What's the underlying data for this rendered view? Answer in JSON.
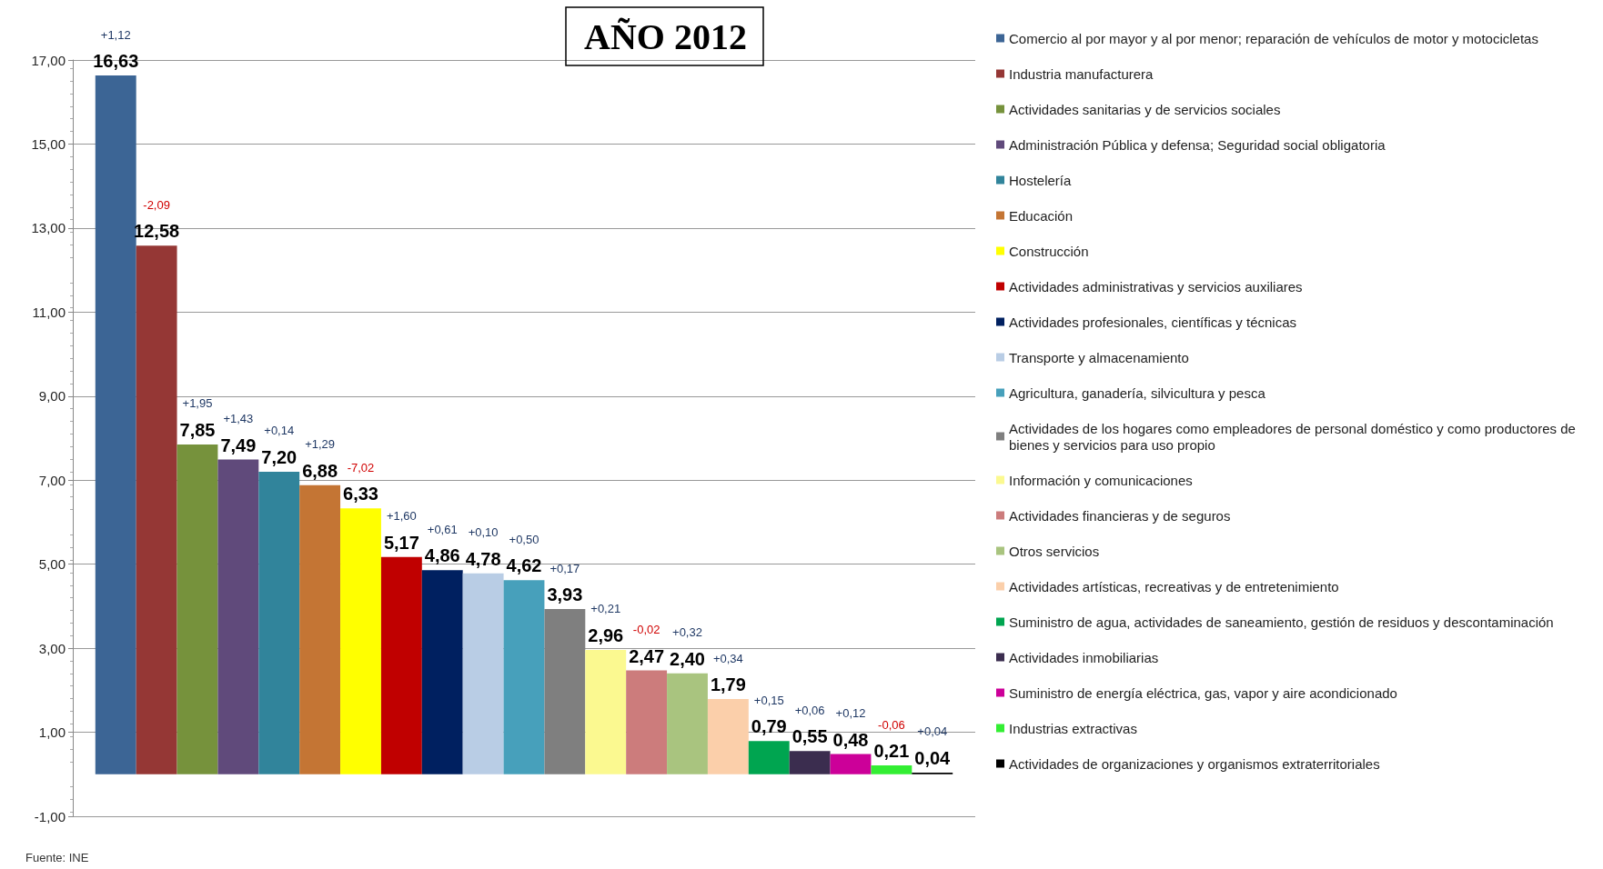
{
  "chart_data": {
    "type": "bar",
    "title": "AÑO 2012",
    "categories": [
      null
    ],
    "series": [
      {
        "name": "Comercio al por mayor y al por menor; reparación de vehículos de motor y motocicletas",
        "color": "#3c6595",
        "values": [
          16.63
        ],
        "value_labels": [
          "16,63"
        ]
      },
      {
        "name": "Industria manufacturera",
        "color": "#953735",
        "values": [
          12.58
        ],
        "value_labels": [
          "12,58"
        ]
      },
      {
        "name": "Actividades sanitarias y de servicios sociales",
        "color": "#76923c",
        "values": [
          7.85
        ],
        "value_labels": [
          "7,85"
        ]
      },
      {
        "name": "Administración Pública y defensa; Seguridad social obligatoria",
        "color": "#604a7b",
        "values": [
          7.49
        ],
        "value_labels": [
          "7,49"
        ]
      },
      {
        "name": "Hostelería",
        "color": "#31849b",
        "values": [
          7.2
        ],
        "value_labels": [
          "7,20"
        ]
      },
      {
        "name": "Educación",
        "color": "#c47534",
        "values": [
          6.88
        ],
        "value_labels": [
          "6,88"
        ]
      },
      {
        "name": "Construcción",
        "color": "#ffff00",
        "values": [
          6.33
        ],
        "value_labels": [
          "6,33"
        ]
      },
      {
        "name": "Actividades administrativas y servicios auxiliares",
        "color": "#c00000",
        "values": [
          5.17
        ],
        "value_labels": [
          "5,17"
        ]
      },
      {
        "name": "Actividades profesionales, científicas y técnicas",
        "color": "#002060",
        "values": [
          4.86
        ],
        "value_labels": [
          "4,86"
        ]
      },
      {
        "name": "Transporte y almacenamiento",
        "color": "#b9cde5",
        "values": [
          4.78
        ],
        "value_labels": [
          "4,78"
        ]
      },
      {
        "name": "Agricultura, ganadería, silvicultura y pesca",
        "color": "#47a0bb",
        "values": [
          4.62
        ],
        "value_labels": [
          "4,62"
        ]
      },
      {
        "name": "Actividades de los hogares como empleadores de personal doméstico y como productores de bienes y servicios para uso propio",
        "color": "#7f7f7f",
        "values": [
          3.93
        ],
        "value_labels": [
          "3,93"
        ]
      },
      {
        "name": "Información y comunicaciones",
        "color": "#fbf990",
        "values": [
          2.96
        ],
        "value_labels": [
          "2,96"
        ]
      },
      {
        "name": "Actividades financieras y de seguros",
        "color": "#cc7c7c",
        "values": [
          2.47
        ],
        "value_labels": [
          "2,47"
        ]
      },
      {
        "name": "Otros servicios",
        "color": "#a9c47f",
        "values": [
          2.4
        ],
        "value_labels": [
          "2,40"
        ]
      },
      {
        "name": "Actividades artísticas, recreativas y de entretenimiento",
        "color": "#fbcfaa",
        "values": [
          1.79
        ],
        "value_labels": [
          "1,79"
        ]
      },
      {
        "name": "Suministro de agua, actividades de saneamiento, gestión de residuos y descontaminación",
        "color": "#00a550",
        "values": [
          0.79
        ],
        "value_labels": [
          "0,79"
        ]
      },
      {
        "name": "Actividades inmobiliarias",
        "color": "#3b2d4f",
        "values": [
          0.55
        ],
        "value_labels": [
          "0,55"
        ]
      },
      {
        "name": "Suministro de energía eléctrica, gas, vapor y aire acondicionado",
        "color": "#cc0099",
        "values": [
          0.48
        ],
        "value_labels": [
          "0,48"
        ]
      },
      {
        "name": "Industrias extractivas",
        "color": "#33ee33",
        "values": [
          0.21
        ],
        "value_labels": [
          "0,21"
        ]
      },
      {
        "name": "Actividades de organizaciones y organismos extraterritoriales",
        "color": "#000000",
        "values": [
          0.04
        ],
        "value_labels": [
          "0,04"
        ]
      }
    ],
    "annotations": [
      "+1,12",
      "-2,09",
      "+1,95",
      "+1,43",
      "+0,14",
      "+1,29",
      "-7,02",
      "+1,60",
      "+0,61",
      "+0,10",
      "+0,50",
      "+0,17",
      "+0,21",
      "-0,02",
      "+0,32",
      "+0,34",
      "+0,15",
      "+0,06",
      "+0,12",
      "-0,06",
      "+0,04",
      "Fuente: INE"
    ],
    "ylim": [
      -1,
      17
    ],
    "yticks": [
      {
        "value": -1,
        "label": "-1,00"
      },
      {
        "value": 1,
        "label": "1,00"
      },
      {
        "value": 3,
        "label": "3,00"
      },
      {
        "value": 5,
        "label": "5,00"
      },
      {
        "value": 7,
        "label": "7,00"
      },
      {
        "value": 9,
        "label": "9,00"
      },
      {
        "value": 11,
        "label": "11,00"
      },
      {
        "value": 13,
        "label": "13,00"
      },
      {
        "value": 15,
        "label": "15,00"
      },
      {
        "value": 17,
        "label": "17,00"
      }
    ],
    "grid": "y",
    "legend": "right"
  }
}
